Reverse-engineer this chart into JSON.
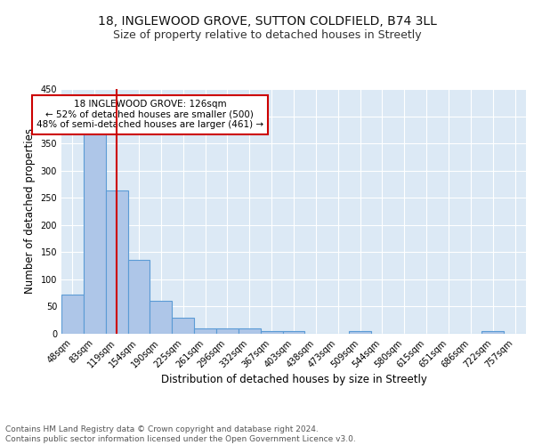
{
  "title1": "18, INGLEWOOD GROVE, SUTTON COLDFIELD, B74 3LL",
  "title2": "Size of property relative to detached houses in Streetly",
  "xlabel": "Distribution of detached houses by size in Streetly",
  "ylabel": "Number of detached properties",
  "bin_labels": [
    "48sqm",
    "83sqm",
    "119sqm",
    "154sqm",
    "190sqm",
    "225sqm",
    "261sqm",
    "296sqm",
    "332sqm",
    "367sqm",
    "403sqm",
    "438sqm",
    "473sqm",
    "509sqm",
    "544sqm",
    "580sqm",
    "615sqm",
    "651sqm",
    "686sqm",
    "722sqm",
    "757sqm"
  ],
  "bar_heights": [
    72,
    375,
    263,
    136,
    60,
    30,
    10,
    10,
    10,
    5,
    5,
    0,
    0,
    5,
    0,
    0,
    0,
    0,
    0,
    5,
    0
  ],
  "bar_color": "#aec6e8",
  "bar_edge_color": "#5b9bd5",
  "background_color": "#dce9f5",
  "grid_color": "#ffffff",
  "ref_line_x": 2,
  "ref_line_color": "#cc0000",
  "annotation_text": "18 INGLEWOOD GROVE: 126sqm\n← 52% of detached houses are smaller (500)\n48% of semi-detached houses are larger (461) →",
  "annotation_box_color": "#ffffff",
  "annotation_box_edge": "#cc0000",
  "ylim": [
    0,
    450
  ],
  "yticks": [
    0,
    50,
    100,
    150,
    200,
    250,
    300,
    350,
    400,
    450
  ],
  "footer": "Contains HM Land Registry data © Crown copyright and database right 2024.\nContains public sector information licensed under the Open Government Licence v3.0.",
  "title1_fontsize": 10,
  "title2_fontsize": 9,
  "xlabel_fontsize": 8.5,
  "ylabel_fontsize": 8.5,
  "tick_fontsize": 7,
  "footer_fontsize": 6.5,
  "ann_fontsize": 7.5
}
